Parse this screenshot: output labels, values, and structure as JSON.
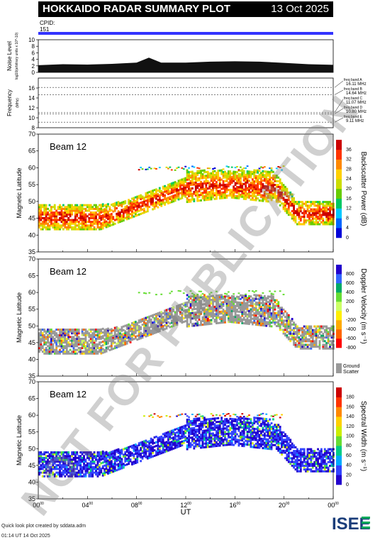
{
  "header": {
    "title": "HOKKAIDO RADAR SUMMARY PLOT",
    "date": "13 Oct 2025"
  },
  "cpid": {
    "label": "CPID:",
    "value": "151"
  },
  "footer": {
    "line1": "Quick look plot created by sddata.adm",
    "line2": "01:14 UT 14 Oct 2025"
  },
  "watermark": "NOT FOR PUBLICATION",
  "logo": "ISEE",
  "colors": {
    "accent": "#3333ff",
    "ground_scatter": "#999999"
  },
  "chart_data": [
    {
      "type": "area",
      "ylabel": "Noise Level",
      "ylabel_units": "log10(arbitrary units x 10^-10)",
      "xlim": [
        0,
        24
      ],
      "ylim": [
        0,
        10
      ],
      "yticks": [
        0,
        2,
        4,
        6,
        8,
        10
      ],
      "x": [
        0,
        2,
        4,
        6,
        8,
        9,
        10,
        12,
        14,
        16,
        18,
        20,
        22,
        24
      ],
      "values": [
        2.2,
        2.5,
        2.4,
        2.6,
        3.0,
        4.5,
        3.0,
        3.0,
        3.3,
        3.4,
        3.3,
        2.9,
        2.5,
        2.3
      ]
    },
    {
      "type": "line",
      "ylabel": "Frequency",
      "ylabel_units": "(MHz)",
      "xlim": [
        0,
        24
      ],
      "ylim": [
        8,
        18
      ],
      "yticks": [
        8,
        10,
        12,
        14,
        16
      ],
      "series": [
        {
          "name": "freq band A",
          "freq": "16.11 MHz",
          "value": 16.11
        },
        {
          "name": "freq band B",
          "freq": "14.64 MHz",
          "value": 14.64
        },
        {
          "name": "freq band C",
          "freq": "11.07 MHz",
          "value": 11.07
        },
        {
          "name": "freq band D",
          "freq": "10.80 MHz",
          "value": 10.8
        },
        {
          "name": "freq band E",
          "freq": "9.11 MHz",
          "value": 9.11
        }
      ]
    },
    {
      "type": "heatmap",
      "label": "Beam 12",
      "ylabel": "Magnetic Latitude",
      "colorbar_label": "Backscatter Power (dB)",
      "colorbar_ticks": [
        0,
        4,
        8,
        12,
        16,
        20,
        24,
        28,
        32,
        36
      ],
      "colormap": [
        "#0000d8",
        "#0066ff",
        "#00c8ff",
        "#00c864",
        "#66cc00",
        "#ccdd00",
        "#ffd000",
        "#ff8800",
        "#ff3300",
        "#cc0000"
      ],
      "xlim": [
        0,
        24
      ],
      "ylim": [
        35,
        70
      ],
      "yticks": [
        35,
        40,
        45,
        50,
        55,
        60,
        65,
        70
      ]
    },
    {
      "type": "heatmap",
      "label": "Beam 12",
      "ylabel": "Magnetic Latitude",
      "colorbar_label": "Doppler Velocity (m s⁻¹)",
      "colorbar_ticks": [
        -800,
        -600,
        -400,
        -200,
        0,
        200,
        400,
        600,
        800
      ],
      "colormap": [
        "#ff0000",
        "#ff6600",
        "#ffaa00",
        "#ffee00",
        "#ccff66",
        "#66dd33",
        "#00aa66",
        "#3366ff",
        "#2200cc"
      ],
      "ground_scatter_label": "Ground Scatter",
      "xlim": [
        0,
        24
      ],
      "ylim": [
        35,
        70
      ],
      "yticks": [
        35,
        40,
        45,
        50,
        55,
        60,
        65,
        70
      ]
    },
    {
      "type": "heatmap",
      "label": "Beam 12",
      "ylabel": "Magnetic Latitude",
      "colorbar_label": "Spectral Width (m s⁻¹)",
      "colorbar_ticks": [
        0,
        20,
        40,
        60,
        80,
        100,
        120,
        140,
        160,
        180
      ],
      "colormap": [
        "#2200cc",
        "#3344ff",
        "#00aaff",
        "#00cc88",
        "#66dd33",
        "#ccee00",
        "#ffd000",
        "#ff8800",
        "#ff3300",
        "#cc0000"
      ],
      "xlim": [
        0,
        24
      ],
      "ylim": [
        35,
        70
      ],
      "yticks": [
        35,
        40,
        45,
        50,
        55,
        60,
        65,
        70
      ],
      "xticks": [
        "00",
        "04",
        "08",
        "12",
        "16",
        "20",
        "00"
      ],
      "xlabel": "UT"
    }
  ]
}
